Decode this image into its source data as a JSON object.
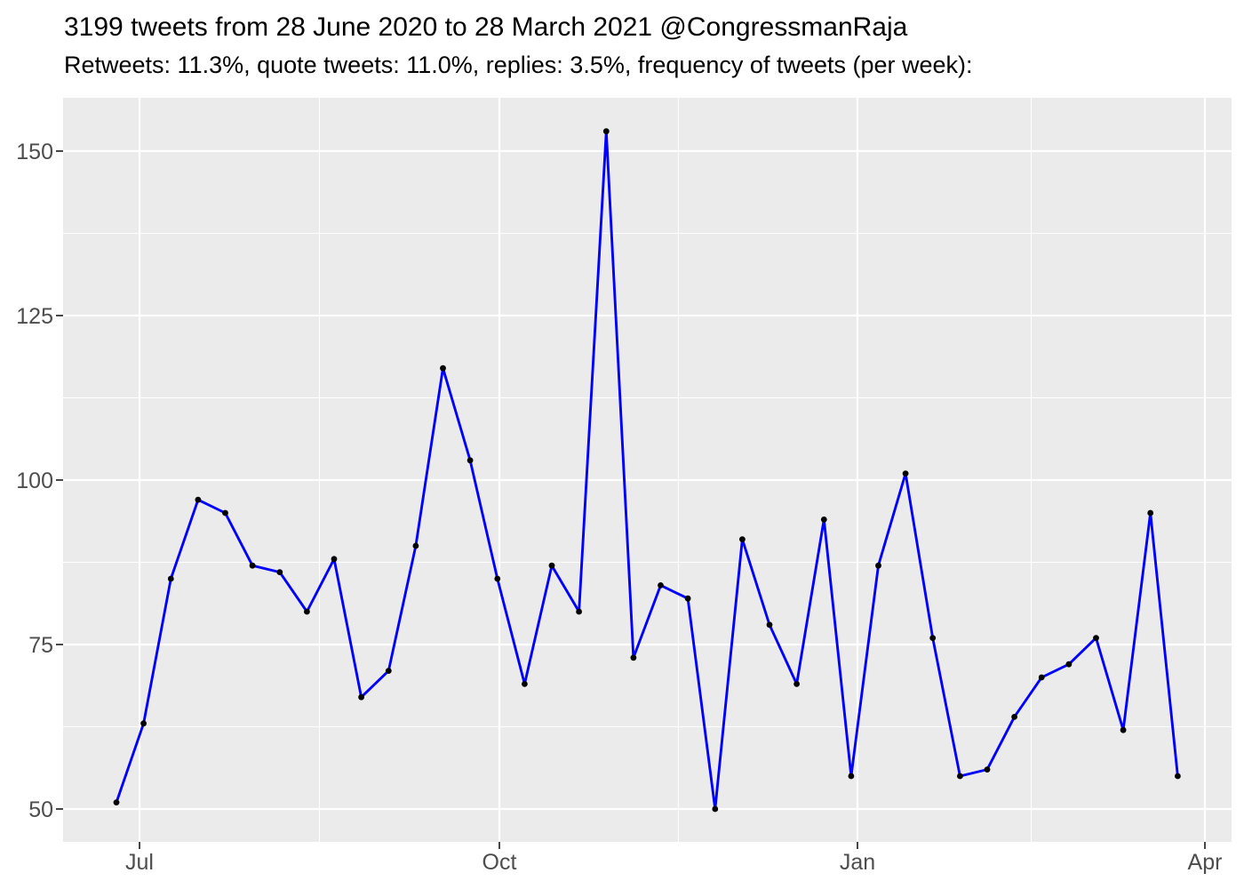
{
  "header": {
    "title": "3199 tweets from 28 June 2020 to 28 March 2021 @CongressmanRaja",
    "subtitle": "Retweets: 11.3%, quote tweets: 11.0%, replies: 3.5%, frequency of tweets (per week):"
  },
  "stats": {
    "total_tweets": 3199,
    "retweets_pct": "11.3%",
    "quote_tweets_pct": "11.0%",
    "replies_pct": "3.5%",
    "account": "@CongressmanRaja",
    "date_range": "28 June 2020 to 28 March 2021"
  },
  "chart_data": {
    "type": "line",
    "title": "3199 tweets from 28 June 2020 to 28 March 2021 @CongressmanRaja",
    "subtitle": "Retweets: 11.3%, quote tweets: 11.0%, replies: 3.5%, frequency of tweets (per week):",
    "series_name": "tweets per week",
    "x": [
      "2020-06-28",
      "2020-07-05",
      "2020-07-12",
      "2020-07-19",
      "2020-07-26",
      "2020-08-02",
      "2020-08-09",
      "2020-08-16",
      "2020-08-23",
      "2020-08-30",
      "2020-09-06",
      "2020-09-13",
      "2020-09-20",
      "2020-09-27",
      "2020-10-04",
      "2020-10-11",
      "2020-10-18",
      "2020-10-25",
      "2020-11-01",
      "2020-11-08",
      "2020-11-15",
      "2020-11-22",
      "2020-11-29",
      "2020-12-06",
      "2020-12-13",
      "2020-12-20",
      "2020-12-27",
      "2021-01-03",
      "2021-01-10",
      "2021-01-17",
      "2021-01-24",
      "2021-01-31",
      "2021-02-07",
      "2021-02-14",
      "2021-02-21",
      "2021-02-28",
      "2021-03-07",
      "2021-03-14",
      "2021-03-21",
      "2021-03-28"
    ],
    "values": [
      51,
      63,
      85,
      97,
      95,
      87,
      86,
      80,
      88,
      67,
      71,
      90,
      117,
      103,
      85,
      69,
      87,
      80,
      153,
      73,
      84,
      82,
      50,
      91,
      78,
      69,
      94,
      55,
      87,
      101,
      76,
      55,
      56,
      64,
      70,
      72,
      76,
      62,
      95,
      55
    ],
    "xlabel": "",
    "ylabel": "",
    "x_tick_labels": [
      "Jul",
      "Oct",
      "Jan",
      "Apr"
    ],
    "x_tick_fracs": [
      0.849,
      14.073,
      27.232,
      40.0
    ],
    "x_minor_fracs": [
      7.461,
      20.652,
      33.616
    ],
    "xlim_fracs": [
      -1.96,
      40.98
    ],
    "y_ticks": [
      50,
      75,
      100,
      125,
      150
    ],
    "y_tick_labels": [
      "50",
      "75",
      "100",
      "125",
      "150"
    ],
    "y_minor": [
      62.5,
      87.5,
      112.5,
      137.5
    ],
    "ylim": [
      45.0,
      158.1
    ],
    "grid": "on",
    "legend": "none",
    "colors": {
      "line": "#0000FF",
      "point": "#000000",
      "panel_bg": "#EBEBEB",
      "grid": "#FFFFFF",
      "axis_text": "#4D4D4D",
      "tick_mark": "#333333",
      "title_text": "#000000"
    }
  }
}
